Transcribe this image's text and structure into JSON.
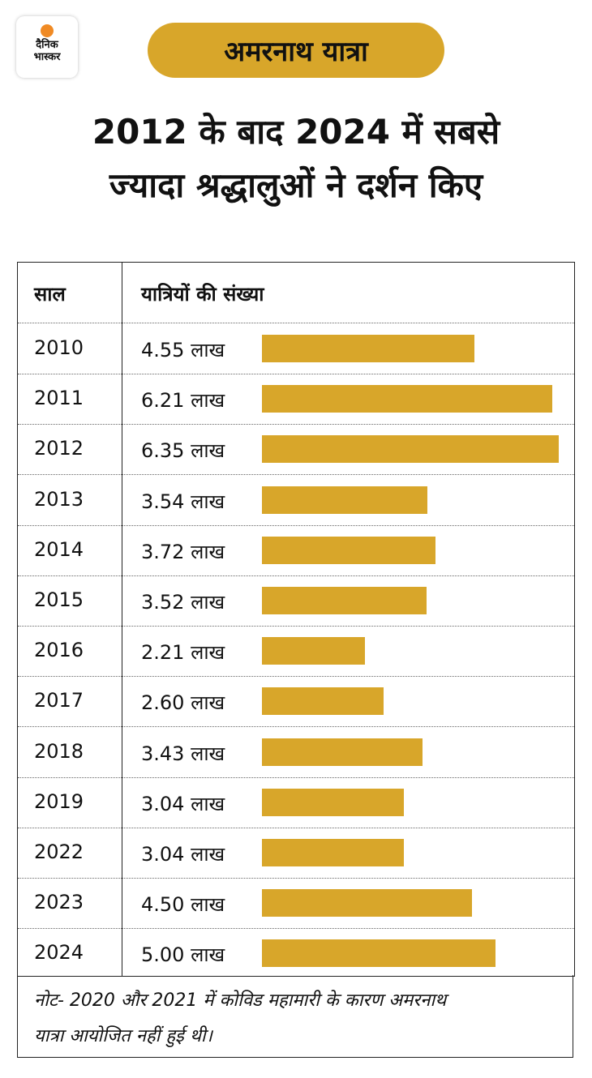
{
  "logo": {
    "line1": "दैनिक",
    "line2": "भास्कर"
  },
  "tag": "अमरनाथ यात्रा",
  "title": {
    "line1": "2012 के बाद 2024 में सबसे",
    "line2": "ज्यादा श्रद्धालुओं ने दर्शन किए"
  },
  "chart_data": {
    "type": "bar",
    "orientation": "horizontal",
    "headers": [
      "साल",
      "यात्रियों की संख्या"
    ],
    "unit": "लाख",
    "categories": [
      "2010",
      "2011",
      "2012",
      "2013",
      "2014",
      "2015",
      "2016",
      "2017",
      "2018",
      "2019",
      "2022",
      "2023",
      "2024"
    ],
    "labels": [
      "4.55 लाख",
      "6.21 लाख",
      "6.35 लाख",
      "3.54 लाख",
      "3.72 लाख",
      "3.52 लाख",
      "2.21 लाख",
      "2.60 लाख",
      "3.43 लाख",
      "3.04 लाख",
      "3.04 लाख",
      "4.50 लाख",
      "5.00 लाख"
    ],
    "values": [
      4.55,
      6.21,
      6.35,
      3.54,
      3.72,
      3.52,
      2.21,
      2.6,
      3.43,
      3.04,
      3.04,
      4.5,
      5.0
    ],
    "bar_color": "#d8a62a"
  },
  "note": {
    "line1": "नोट- 2020 और 2021 में कोविड महामारी के कारण अमरनाथ",
    "line2": "यात्रा आयोजित नहीं हुई थी।"
  }
}
